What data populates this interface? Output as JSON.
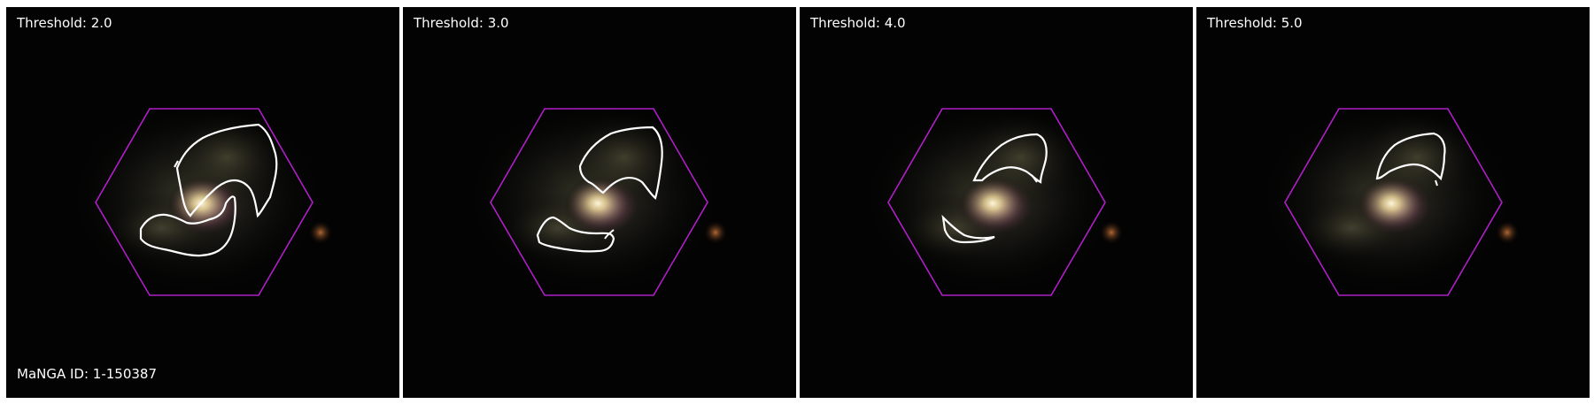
{
  "panels": [
    {
      "threshold_label": "Threshold: 2.0"
    },
    {
      "threshold_label": "Threshold: 3.0"
    },
    {
      "threshold_label": "Threshold: 4.0"
    },
    {
      "threshold_label": "Threshold: 5.0"
    }
  ],
  "manga_id_label": "MaNGA ID: 1-150387",
  "colors": {
    "hexagon": "#b01ec8",
    "contour": "#ffffff",
    "background": "#030303"
  }
}
